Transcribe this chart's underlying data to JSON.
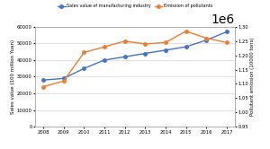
{
  "years": [
    2008,
    2009,
    2010,
    2011,
    2012,
    2013,
    2014,
    2015,
    2016,
    2017
  ],
  "sales_value": [
    28000,
    29000,
    35000,
    40000,
    42000,
    44000,
    46000,
    48000,
    52000,
    57000
  ],
  "emission": [
    1090000,
    1110000,
    1210000,
    1230000,
    1250000,
    1240000,
    1245000,
    1285000,
    1260000,
    1245000
  ],
  "sales_color": "#4472C4",
  "emission_color": "#ED7D31",
  "sales_label": "Sales value of manufacturing industry",
  "emission_label": "Emission of pollutants",
  "ylabel_left": "Sales value (100 million Yuan)",
  "ylabel_right": "Pollutant emission (10000 tons)",
  "ylim_left": [
    0,
    60000
  ],
  "ylim_right": [
    950000,
    1300000
  ],
  "yticks_left": [
    0,
    10000,
    20000,
    30000,
    40000,
    50000,
    60000
  ],
  "yticks_right": [
    950000,
    1000000,
    1050000,
    1100000,
    1150000,
    1200000,
    1250000,
    1300000
  ],
  "bg_color": "#FFFFFF",
  "grid_color": "#CCCCCC",
  "marker_size": 2.5,
  "line_width": 1.0
}
